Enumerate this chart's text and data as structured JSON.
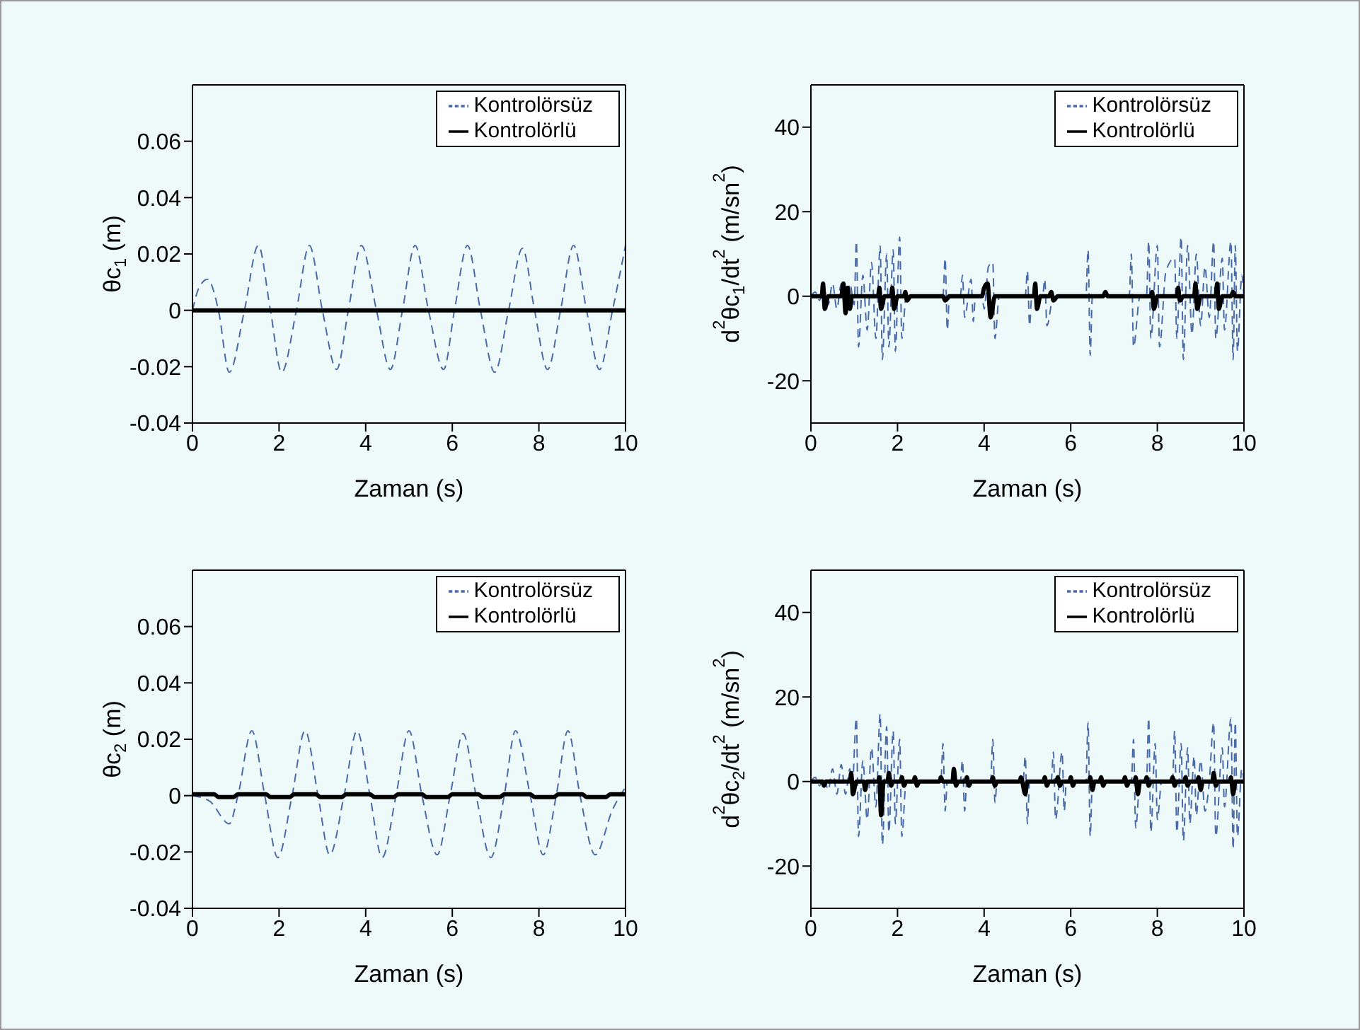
{
  "chart_data": [
    {
      "type": "line",
      "xlabel": "Zaman (s)",
      "ylabel": "θc$_{1}$ (m)",
      "xlim": [
        0,
        10
      ],
      "xticks": [
        0,
        2,
        4,
        6,
        8,
        10
      ],
      "ylim": [
        -0.04,
        0.08
      ],
      "yticks": [
        -0.04,
        -0.02,
        0,
        0.02,
        0.04,
        0.06
      ],
      "legend": "top right",
      "series": [
        {
          "name": "Kontrolörsüz",
          "color": "#4a6aa8",
          "line_style": "dashed",
          "x": [
            0,
            0.15,
            0.35,
            0.6,
            0.85,
            1.2,
            1.52,
            1.8,
            2.06,
            2.4,
            2.7,
            3.0,
            3.33,
            3.6,
            3.9,
            4.25,
            4.57,
            4.85,
            5.14,
            5.45,
            5.8,
            6.05,
            6.35,
            6.65,
            6.98,
            7.3,
            7.62,
            7.9,
            8.2,
            8.5,
            8.8,
            9.1,
            9.4,
            9.7,
            10
          ],
          "values": [
            0,
            0.008,
            0.011,
            0,
            -0.022,
            0,
            0.023,
            0,
            -0.022,
            0,
            0.023,
            0,
            -0.021,
            0,
            0.023,
            0,
            -0.021,
            0,
            0.023,
            0,
            -0.021,
            0,
            0.023,
            0,
            -0.022,
            0,
            0.022,
            0,
            -0.021,
            0,
            0.023,
            0,
            -0.021,
            0,
            0.023
          ]
        },
        {
          "name": "Kontrolörlü",
          "color": "#000000",
          "line_style": "solid",
          "x": [
            0,
            10
          ],
          "values": [
            0,
            0
          ]
        }
      ]
    },
    {
      "type": "line",
      "xlabel": "Zaman (s)",
      "ylabel": "d$^{2}$θc$_{1}$/dt$^{2}$ (m/sn$^{2}$)",
      "xlim": [
        0,
        10
      ],
      "xticks": [
        0,
        2,
        4,
        6,
        8,
        10
      ],
      "ylim": [
        -30,
        50
      ],
      "yticks": [
        -20,
        0,
        20,
        40
      ],
      "legend": "top right",
      "series": [
        {
          "name": "Kontrolörsüz",
          "color": "#4a6aa8",
          "line_style": "dashed",
          "x": [
            0,
            0.1,
            0.2,
            0.3,
            0.4,
            0.5,
            0.6,
            0.7,
            0.8,
            0.9,
            1.0,
            1.05,
            1.1,
            1.2,
            1.3,
            1.4,
            1.5,
            1.6,
            1.65,
            1.75,
            1.8,
            1.9,
            1.95,
            2.05,
            2.1,
            2.2,
            3.05,
            3.1,
            3.15,
            3.2,
            3.45,
            3.5,
            3.55,
            3.7,
            3.75,
            3.8,
            3.95,
            4.0,
            4.1,
            4.2,
            4.25,
            4.35,
            4.95,
            5.0,
            5.05,
            5.1,
            5.35,
            5.4,
            5.45,
            5.6,
            6.35,
            6.4,
            6.45,
            6.5,
            7.35,
            7.4,
            7.45,
            7.6,
            7.75,
            7.8,
            7.85,
            8.0,
            8.05,
            8.2,
            8.4,
            8.45,
            8.55,
            8.6,
            8.7,
            8.8,
            8.9,
            9.0,
            9.1,
            9.2,
            9.3,
            9.35,
            9.5,
            9.55,
            9.7,
            9.75,
            9.8,
            9.85,
            9.95,
            10
          ],
          "values": [
            0,
            1,
            -1,
            2,
            -2,
            3,
            -3,
            3,
            -4,
            3,
            -2,
            13,
            -12,
            5,
            -8,
            8,
            -10,
            12,
            -15,
            10,
            -12,
            11,
            -13,
            14,
            -10,
            0,
            0,
            9,
            -8,
            0,
            0,
            5,
            -5,
            4,
            -6,
            0,
            0,
            -3,
            7,
            8,
            -10,
            0,
            0,
            6,
            -7,
            0,
            0,
            4,
            -7,
            0,
            0,
            11,
            -14,
            0,
            0,
            10,
            -12,
            0,
            0,
            13,
            -10,
            12,
            -12,
            6,
            9,
            -10,
            14,
            -15,
            12,
            -9,
            10,
            -7,
            7,
            -5,
            13,
            -10,
            9,
            -8,
            13,
            -15,
            12,
            -13,
            5,
            0
          ]
        },
        {
          "name": "Kontrolörlü",
          "color": "#000000",
          "line_style": "solid",
          "x": [
            0,
            0.25,
            0.28,
            0.32,
            0.4,
            0.7,
            0.75,
            0.8,
            0.85,
            0.9,
            0.95,
            1.55,
            1.58,
            1.62,
            1.7,
            1.85,
            1.88,
            1.92,
            2.0,
            2.15,
            2.18,
            2.22,
            2.3,
            3.05,
            3.1,
            3.2,
            3.95,
            4.0,
            4.08,
            4.15,
            4.25,
            5.15,
            5.18,
            5.22,
            5.3,
            5.5,
            5.55,
            5.6,
            5.7,
            6.75,
            6.8,
            6.85,
            7.85,
            7.88,
            7.92,
            8.0,
            8.45,
            8.48,
            8.52,
            8.6,
            8.85,
            8.88,
            8.92,
            9.0,
            9.35,
            9.38,
            9.42,
            9.5,
            9.7,
            9.75,
            9.8,
            10
          ],
          "values": [
            0,
            0,
            3,
            -3,
            0,
            0,
            3,
            -4,
            2,
            -3,
            0,
            0,
            2,
            -3,
            0,
            0,
            2,
            -3,
            0,
            0,
            1,
            -1,
            0,
            0,
            -1,
            0,
            0,
            2,
            3,
            -5,
            0,
            0,
            3,
            -3,
            0,
            0,
            1,
            -1,
            0,
            0,
            1,
            0,
            0,
            1,
            -3,
            0,
            0,
            2,
            -1,
            0,
            0,
            3,
            -3,
            0,
            0,
            3,
            -3,
            0,
            0,
            1,
            0,
            0
          ]
        }
      ]
    },
    {
      "type": "line",
      "xlabel": "Zaman (s)",
      "ylabel": "θc$_{2}$ (m)",
      "xlim": [
        0,
        10
      ],
      "xticks": [
        0,
        2,
        4,
        6,
        8,
        10
      ],
      "ylim": [
        -0.04,
        0.08
      ],
      "yticks": [
        -0.04,
        -0.02,
        0,
        0.02,
        0.04,
        0.06
      ],
      "legend": "top right",
      "series": [
        {
          "name": "Kontrolörsüz",
          "color": "#4a6aa8",
          "line_style": "dashed",
          "x": [
            0,
            0.4,
            0.85,
            1.05,
            1.37,
            1.67,
            1.97,
            2.3,
            2.6,
            2.9,
            3.17,
            3.5,
            3.8,
            4.1,
            4.38,
            4.7,
            5.0,
            5.3,
            5.65,
            5.95,
            6.25,
            6.55,
            6.89,
            7.2,
            7.46,
            7.8,
            8.1,
            8.4,
            8.67,
            8.95,
            9.3,
            9.7,
            10
          ],
          "values": [
            0,
            -0.002,
            -0.01,
            0,
            0.023,
            0,
            -0.022,
            0,
            0.023,
            0,
            -0.021,
            0,
            0.023,
            0,
            -0.022,
            0,
            0.023,
            0,
            -0.021,
            0,
            0.022,
            0,
            -0.022,
            0,
            0.023,
            0,
            -0.021,
            0,
            0.023,
            0,
            -0.021,
            -0.005,
            0.003
          ]
        },
        {
          "name": "Kontrolörlü",
          "color": "#000000",
          "line_style": "solid",
          "x": [
            0,
            0.5,
            0.6,
            0.95,
            1.05,
            1.7,
            1.8,
            2.25,
            2.35,
            2.85,
            2.95,
            3.45,
            3.55,
            4.1,
            4.2,
            4.65,
            4.75,
            5.3,
            5.4,
            5.9,
            6.0,
            6.6,
            6.7,
            7.1,
            7.2,
            7.8,
            7.9,
            8.35,
            8.45,
            9.0,
            9.1,
            9.55,
            9.65,
            10
          ],
          "values": [
            0.0005,
            0.0005,
            -0.0005,
            -0.0005,
            0.0005,
            0.0005,
            -0.0005,
            -0.0005,
            0.0005,
            0.0005,
            -0.0005,
            -0.0005,
            0.0005,
            0.0005,
            -0.0005,
            -0.0005,
            0.0005,
            0.0005,
            -0.0005,
            -0.0005,
            0.0005,
            0.0005,
            -0.0005,
            -0.0005,
            0.0005,
            0.0005,
            -0.0005,
            -0.0005,
            0.0005,
            0.0005,
            -0.0005,
            -0.0005,
            0.0005,
            0.0005
          ]
        }
      ]
    },
    {
      "type": "line",
      "xlabel": "Zaman (s)",
      "ylabel": "d$^{2}$θc$_{2}$/dt$^{2}$ (m/sn$^{2}$)",
      "xlim": [
        0,
        10
      ],
      "xticks": [
        0,
        2,
        4,
        6,
        8,
        10
      ],
      "ylim": [
        -30,
        50
      ],
      "yticks": [
        -20,
        0,
        20,
        40
      ],
      "legend": "top right",
      "series": [
        {
          "name": "Kontrolörsüz",
          "color": "#4a6aa8",
          "line_style": "dashed",
          "x": [
            0,
            0.1,
            0.2,
            0.3,
            0.4,
            0.5,
            0.6,
            0.7,
            0.8,
            0.9,
            0.95,
            1.05,
            1.1,
            1.2,
            1.3,
            1.4,
            1.5,
            1.6,
            1.65,
            1.75,
            1.8,
            1.9,
            1.95,
            2.05,
            2.1,
            2.2,
            3.0,
            3.05,
            3.1,
            3.15,
            3.45,
            3.5,
            3.55,
            3.6,
            4.15,
            4.2,
            4.25,
            4.3,
            4.9,
            4.95,
            5.0,
            5.05,
            5.55,
            5.6,
            5.65,
            5.8,
            5.85,
            5.9,
            6.35,
            6.4,
            6.45,
            6.5,
            7.4,
            7.45,
            7.5,
            7.6,
            7.75,
            7.8,
            7.85,
            7.95,
            8.0,
            8.1,
            8.35,
            8.4,
            8.45,
            8.55,
            8.6,
            8.7,
            8.75,
            8.85,
            8.9,
            9.0,
            9.1,
            9.2,
            9.3,
            9.35,
            9.5,
            9.55,
            9.7,
            9.75,
            9.8,
            9.85,
            9.95,
            10
          ],
          "values": [
            0,
            1,
            -1,
            1,
            -2,
            3,
            -3,
            4,
            -3,
            3,
            -2,
            15,
            -13,
            5,
            -9,
            8,
            -6,
            16,
            -15,
            13,
            -12,
            12,
            -10,
            10,
            -13,
            0,
            0,
            9,
            -7,
            0,
            0,
            5,
            -7,
            0,
            0,
            10,
            -5,
            0,
            0,
            6,
            -10,
            0,
            0,
            7,
            -9,
            7,
            -7,
            0,
            0,
            14,
            -13,
            0,
            0,
            10,
            -11,
            0,
            0,
            15,
            -12,
            9,
            -9,
            0,
            0,
            12,
            -12,
            9,
            -14,
            8,
            -10,
            6,
            -8,
            5,
            -7,
            0,
            14,
            -13,
            8,
            -6,
            15,
            -16,
            14,
            -13,
            3,
            0
          ]
        },
        {
          "name": "Kontrolörlü",
          "color": "#000000",
          "line_style": "solid",
          "x": [
            0,
            0.27,
            0.3,
            0.35,
            0.9,
            0.93,
            0.97,
            1.05,
            1.22,
            1.25,
            1.3,
            1.55,
            1.58,
            1.62,
            1.68,
            1.77,
            1.8,
            1.85,
            1.9,
            2.07,
            2.1,
            2.15,
            2.2,
            2.37,
            2.4,
            2.45,
            2.5,
            2.97,
            3.0,
            3.05,
            3.27,
            3.3,
            3.35,
            3.4,
            3.57,
            3.6,
            3.65,
            3.7,
            4.17,
            4.2,
            4.25,
            4.3,
            4.82,
            4.85,
            4.95,
            5.0,
            5.37,
            5.4,
            5.45,
            5.5,
            5.67,
            5.7,
            5.75,
            5.8,
            5.97,
            6.0,
            6.05,
            6.1,
            6.42,
            6.45,
            6.5,
            6.55,
            6.67,
            6.7,
            6.75,
            6.8,
            7.22,
            7.25,
            7.3,
            7.35,
            7.47,
            7.5,
            7.55,
            7.6,
            7.72,
            7.75,
            7.8,
            7.85,
            8.32,
            8.35,
            8.4,
            8.45,
            8.62,
            8.65,
            8.7,
            8.75,
            8.92,
            8.95,
            9.0,
            9.05,
            9.27,
            9.3,
            9.35,
            9.4,
            9.67,
            9.7,
            9.75,
            9.8,
            10
          ],
          "values": [
            0,
            0,
            -1,
            0,
            0,
            2,
            -3,
            0,
            0,
            -2,
            0,
            0,
            1,
            -8,
            0,
            0,
            2,
            -1,
            0,
            0,
            1,
            -1,
            0,
            0,
            1,
            -1,
            0,
            0,
            1,
            0,
            0,
            3,
            -1,
            0,
            0,
            1,
            -1,
            0,
            0,
            1,
            -1,
            0,
            0,
            1,
            -3,
            0,
            0,
            1,
            -1,
            0,
            0,
            1,
            -1,
            0,
            0,
            1,
            -1,
            0,
            0,
            1,
            -2,
            0,
            0,
            1,
            -1,
            0,
            0,
            1,
            -1,
            0,
            0,
            1,
            -3,
            0,
            0,
            1,
            -1,
            0,
            0,
            1,
            -1,
            0,
            0,
            1,
            -1,
            0,
            0,
            1,
            -2,
            0,
            0,
            2,
            -1,
            0,
            0,
            1,
            -3,
            0,
            0
          ]
        }
      ]
    }
  ]
}
